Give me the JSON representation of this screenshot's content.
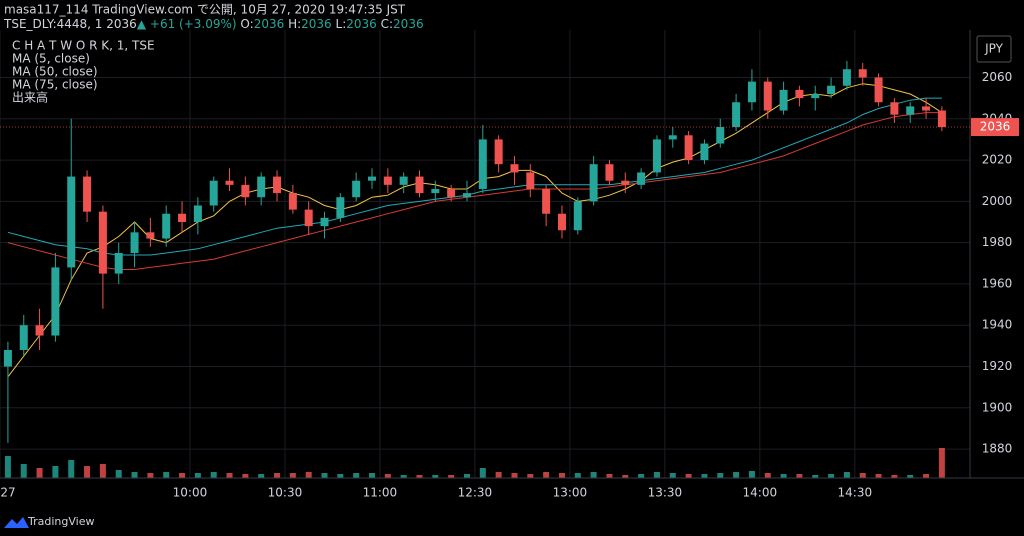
{
  "header": {
    "publisher": "masa117_114 TradingView.com で公開, 10月 27, 2020 19:47:35 JST",
    "symbol": "TSE_DLY:4448, 1",
    "last": "2036",
    "arrow": "▲",
    "change": "+61 (+3.09%)",
    "ohlc": [
      {
        "key": "O:",
        "value": "2036"
      },
      {
        "key": "H:",
        "value": "2036"
      },
      {
        "key": "L:",
        "value": "2036"
      },
      {
        "key": "C:",
        "value": "2036"
      }
    ]
  },
  "currency": "JPY",
  "footer": "TradingView",
  "chart_data": {
    "type": "candlestick",
    "title": "C H A T W O R K, 1, TSE",
    "x": [
      "9:00",
      "9:05",
      "9:10",
      "9:15",
      "9:20",
      "9:25",
      "9:30",
      "9:35",
      "9:40",
      "9:45",
      "9:50",
      "9:55",
      "10:00",
      "10:05",
      "10:10",
      "10:15",
      "10:20",
      "10:25",
      "10:30",
      "10:35",
      "10:40",
      "10:45",
      "10:50",
      "10:55",
      "11:00",
      "11:05",
      "11:10",
      "11:15",
      "11:20",
      "11:25",
      "12:30",
      "12:35",
      "12:40",
      "12:45",
      "12:50",
      "12:55",
      "13:00",
      "13:05",
      "13:10",
      "13:15",
      "13:20",
      "13:25",
      "13:30",
      "13:35",
      "13:40",
      "13:45",
      "13:50",
      "13:55",
      "14:00",
      "14:05",
      "14:10",
      "14:15",
      "14:20",
      "14:25",
      "14:30",
      "14:35",
      "14:40",
      "14:45",
      "14:50",
      "14:55"
    ],
    "open": [
      1920,
      1928,
      1940,
      1935,
      1968,
      2012,
      1995,
      1965,
      1975,
      1985,
      1982,
      1994,
      1990,
      1998,
      2010,
      2008,
      2002,
      2012,
      2004,
      1996,
      1988,
      1992,
      2002,
      2010,
      2012,
      2008,
      2012,
      2004,
      2006,
      2002,
      2006,
      2030,
      2018,
      2014,
      2006,
      1994,
      1986,
      2000,
      2018,
      2010,
      2008,
      2014,
      2030,
      2032,
      2020,
      2028,
      2036,
      2048,
      2058,
      2044,
      2054,
      2050,
      2052,
      2056,
      2064,
      2060,
      2048,
      2042,
      2046,
      2044
    ],
    "high": [
      1932,
      1945,
      1948,
      1975,
      2040,
      2015,
      1998,
      1980,
      1990,
      1992,
      1998,
      2000,
      2002,
      2012,
      2016,
      2012,
      2014,
      2015,
      2008,
      2000,
      1995,
      2004,
      2014,
      2016,
      2016,
      2014,
      2015,
      2010,
      2008,
      2010,
      2037,
      2032,
      2022,
      2018,
      2008,
      1998,
      2002,
      2022,
      2020,
      2014,
      2016,
      2032,
      2036,
      2034,
      2030,
      2040,
      2052,
      2064,
      2060,
      2058,
      2056,
      2056,
      2060,
      2068,
      2067,
      2062,
      2050,
      2048,
      2050,
      2046
    ],
    "low": [
      1883,
      1925,
      1928,
      1932,
      1962,
      1990,
      1948,
      1960,
      1968,
      1978,
      1978,
      1985,
      1984,
      1995,
      2005,
      1998,
      1998,
      2000,
      1994,
      1984,
      1982,
      1990,
      2000,
      2006,
      2004,
      2004,
      2002,
      2000,
      2000,
      2000,
      2004,
      2014,
      2008,
      2002,
      1988,
      1982,
      1984,
      1998,
      2008,
      2004,
      2006,
      2012,
      2026,
      2018,
      2018,
      2026,
      2034,
      2044,
      2040,
      2042,
      2046,
      2044,
      2050,
      2054,
      2056,
      2046,
      2038,
      2038,
      2040,
      2034
    ],
    "close": [
      1928,
      1940,
      1935,
      1968,
      2012,
      1995,
      1965,
      1975,
      1985,
      1982,
      1994,
      1990,
      1998,
      2010,
      2008,
      2002,
      2012,
      2004,
      1996,
      1988,
      1992,
      2002,
      2010,
      2012,
      2008,
      2012,
      2004,
      2006,
      2002,
      2004,
      2030,
      2018,
      2014,
      2006,
      1994,
      1986,
      2000,
      2018,
      2010,
      2008,
      2014,
      2030,
      2032,
      2020,
      2028,
      2036,
      2048,
      2058,
      2044,
      2054,
      2050,
      2052,
      2056,
      2064,
      2060,
      2048,
      2042,
      2046,
      2044,
      2036
    ],
    "volume_name": "出来高",
    "volume": [
      22,
      14,
      10,
      12,
      18,
      12,
      14,
      8,
      6,
      5,
      6,
      5,
      5,
      6,
      5,
      4,
      4,
      5,
      5,
      6,
      5,
      4,
      5,
      5,
      4,
      3,
      3,
      3,
      3,
      4,
      10,
      6,
      5,
      4,
      6,
      5,
      5,
      6,
      4,
      3,
      4,
      6,
      5,
      4,
      4,
      5,
      6,
      7,
      5,
      4,
      4,
      3,
      4,
      6,
      5,
      4,
      3,
      3,
      4,
      30
    ],
    "up_color": "#26a69a",
    "down_color": "#ef5350",
    "series": [
      {
        "name": "MA (5, close)",
        "color": "#f5c242",
        "values": [
          1915,
          1925,
          1935,
          1945,
          1962,
          1975,
          1978,
          1983,
          1990,
          1982,
          1980,
          1985,
          1990,
          1993,
          2000,
          2004,
          2006,
          2007,
          2004,
          2002,
          1998,
          1996,
          1998,
          2002,
          2003,
          2007,
          2009,
          2008,
          2006,
          2006,
          2011,
          2012,
          2015,
          2015,
          2012,
          2004,
          2000,
          2001,
          2003,
          2006,
          2010,
          2016,
          2019,
          2021,
          2025,
          2029,
          2033,
          2038,
          2043,
          2048,
          2051,
          2052,
          2051,
          2055,
          2057,
          2056,
          2054,
          2052,
          2048,
          2043
        ]
      },
      {
        "name": "MA (50, close)",
        "color": "#22a9b8",
        "values": [
          1985,
          1983,
          1981,
          1979,
          1978,
          1977,
          1975,
          1974,
          1974,
          1974,
          1975,
          1976,
          1977,
          1979,
          1981,
          1983,
          1985,
          1987,
          1988,
          1989,
          1990,
          1992,
          1994,
          1996,
          1998,
          1999,
          2000,
          2001,
          2002,
          2003,
          2005,
          2006,
          2007,
          2008,
          2008,
          2008,
          2008,
          2008,
          2008,
          2009,
          2010,
          2011,
          2012,
          2013,
          2014,
          2016,
          2018,
          2020,
          2023,
          2026,
          2029,
          2032,
          2035,
          2038,
          2042,
          2045,
          2047,
          2049,
          2050,
          2050
        ]
      },
      {
        "name": "MA (75, close)",
        "color": "#d63a32",
        "values": [
          1980,
          1978,
          1976,
          1974,
          1972,
          1970,
          1968,
          1967,
          1967,
          1968,
          1969,
          1970,
          1971,
          1972,
          1974,
          1976,
          1978,
          1980,
          1982,
          1984,
          1986,
          1988,
          1990,
          1992,
          1994,
          1996,
          1998,
          2000,
          2001,
          2002,
          2003,
          2004,
          2005,
          2006,
          2006,
          2006,
          2006,
          2006,
          2007,
          2008,
          2009,
          2010,
          2011,
          2012,
          2013,
          2014,
          2016,
          2018,
          2020,
          2022,
          2025,
          2028,
          2031,
          2034,
          2037,
          2039,
          2041,
          2042,
          2043,
          2043
        ]
      }
    ],
    "last_price": 2036,
    "ylim": [
      1866,
      2083
    ],
    "yticks": [
      1880,
      1900,
      1920,
      1940,
      1960,
      1980,
      2000,
      2020,
      2040,
      2060
    ],
    "xticks": [
      {
        "value": "9:00",
        "label": "27"
      },
      "10:00",
      "10:30",
      "11:00",
      "12:30",
      "13:00",
      "13:30",
      "14:00",
      "14:30"
    ],
    "grid": true
  }
}
